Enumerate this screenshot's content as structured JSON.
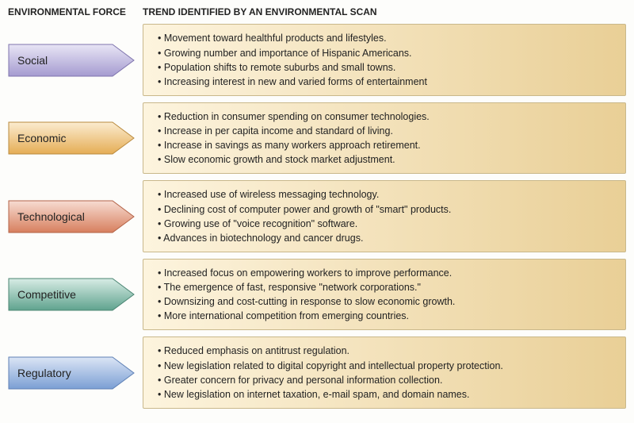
{
  "headers": {
    "force": "ENVIRONMENTAL FORCE",
    "trend": "TREND IDENTIFIED BY AN ENVIRONMENTAL SCAN"
  },
  "trend_box": {
    "bg_gradient_from": "#fdf4de",
    "bg_gradient_to": "#e9cf96",
    "border_color": "#c9b88b"
  },
  "forces": [
    {
      "label": "Social",
      "gradient_from": "#e8e5f5",
      "gradient_to": "#a59bd0",
      "stroke": "#7e74ad",
      "trends": [
        "Movement toward healthful products and lifestyles.",
        "Growing number and importance of Hispanic Americans.",
        "Population shifts to remote suburbs and small towns.",
        "Increasing interest in new and varied forms of entertainment"
      ]
    },
    {
      "label": "Economic",
      "gradient_from": "#fbecd0",
      "gradient_to": "#e5ad55",
      "stroke": "#b98a3e",
      "trends": [
        "Reduction in consumer spending on consumer technologies.",
        "Increase in per capita income and standard of living.",
        "Increase in savings as many workers approach retirement.",
        "Slow economic growth and stock market adjustment."
      ]
    },
    {
      "label": "Technological",
      "gradient_from": "#f7dcd2",
      "gradient_to": "#d77f5e",
      "stroke": "#b36347",
      "trends": [
        "Increased use of wireless messaging technology.",
        "Declining cost of computer power and growth of \"smart\" products.",
        "Growing use of \"voice recognition\" software.",
        "Advances in biotechnology and cancer drugs."
      ]
    },
    {
      "label": "Competitive",
      "gradient_from": "#d7ece5",
      "gradient_to": "#5fa38e",
      "stroke": "#4a8572",
      "trends": [
        "Increased focus on empowering workers to improve performance.",
        "The emergence of fast, responsive \"network corporations.\"",
        "Downsizing and cost-cutting in response to slow economic growth.",
        "More international competition from emerging countries."
      ]
    },
    {
      "label": "Regulatory",
      "gradient_from": "#dbe5f5",
      "gradient_to": "#7b9fd4",
      "stroke": "#5e80b5",
      "trends": [
        "Reduced emphasis on antitrust regulation.",
        "New legislation related to digital copyright and intellectual property protection.",
        "Greater concern for privacy and personal information collection.",
        "New legislation on internet taxation, e-mail spam, and domain names."
      ]
    }
  ]
}
